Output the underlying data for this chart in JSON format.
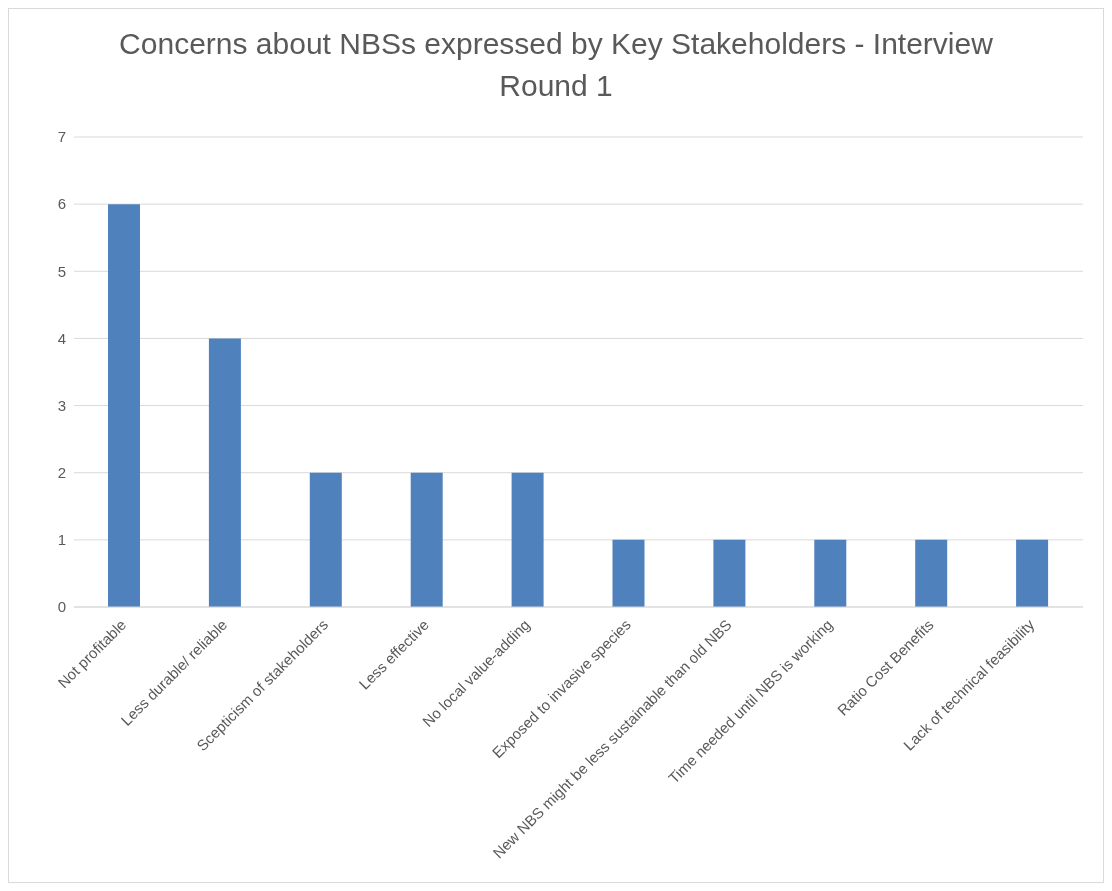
{
  "chart_data": {
    "type": "bar",
    "title": "Concerns about NBSs expressed by Key Stakeholders - Interview Round 1",
    "categories": [
      "Not profitable",
      "Less durable/ reliable",
      "Scepticism of stakeholders",
      "Less effective",
      "No local value-adding",
      "Exposed to invasive species",
      "New NBS might be less sustainable than old NBS",
      "Time needed until NBS is working",
      "Ratio Cost Benefits",
      "Lack of technical feasibility"
    ],
    "values": [
      6,
      4,
      2,
      2,
      2,
      1,
      1,
      1,
      1,
      1
    ],
    "color": "#4f81bd",
    "ylim": [
      0,
      7
    ],
    "yticks": [
      0,
      1,
      2,
      3,
      4,
      5,
      6,
      7
    ],
    "grid": "y",
    "legend": false
  }
}
